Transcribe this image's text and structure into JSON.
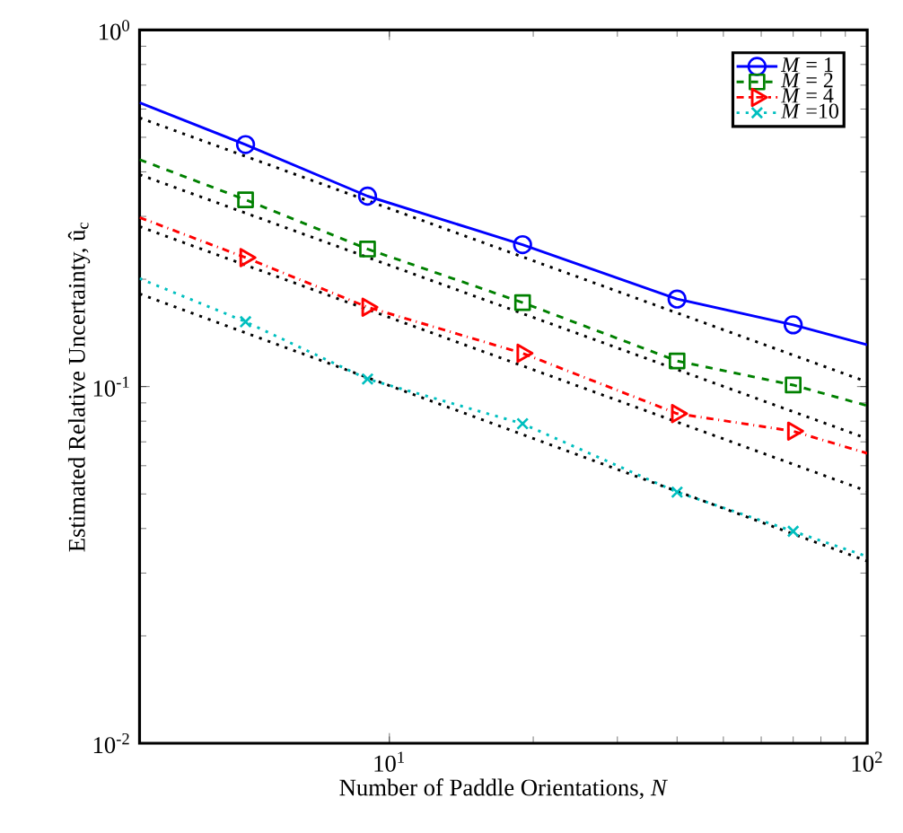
{
  "chart_data": {
    "type": "line",
    "xlabel": "Number of Paddle Orientations, *N*",
    "ylabel": "Estimated Relative Uncertainty, û$_{c}$",
    "log": "xy",
    "xlim": [
      3,
      100
    ],
    "ylim": [
      0.01,
      1
    ],
    "xticks": [
      {
        "value": 10,
        "label": "10$^{1}$"
      },
      {
        "value": 100,
        "label": "10$^{2}$"
      }
    ],
    "yticks": [
      {
        "value": 0.01,
        "label": "10$^{-2}$"
      },
      {
        "value": 0.1,
        "label": "10$^{-1}$"
      },
      {
        "value": 1,
        "label": "10$^{0}$"
      }
    ],
    "grid": false,
    "legend": "top right",
    "series": [
      {
        "name": "*M* = 1",
        "color": "#0000ff",
        "marker": "circle",
        "line_style": "solid",
        "x": [
          3,
          5,
          9,
          19,
          40,
          70,
          100
        ],
        "values": [
          0.625,
          0.477,
          0.342,
          0.25,
          0.176,
          0.149,
          0.131
        ]
      },
      {
        "name": "*M* = 2",
        "color": "#008000",
        "marker": "square",
        "line_style": "dashed",
        "x": [
          3,
          5,
          9,
          19,
          40,
          70,
          100
        ],
        "values": [
          0.433,
          0.334,
          0.243,
          0.172,
          0.118,
          0.101,
          0.0884
        ]
      },
      {
        "name": "*M* = 4",
        "color": "#ff0000",
        "marker": "triangle",
        "line_style": "dashdot",
        "x": [
          3,
          5,
          9,
          19,
          40,
          70,
          100
        ],
        "values": [
          0.298,
          0.23,
          0.167,
          0.124,
          0.084,
          0.075,
          0.065
        ]
      },
      {
        "name": "*M* =10",
        "color": "#00bfbf",
        "marker": "cross",
        "line_style": "dotted",
        "x": [
          3,
          5,
          9,
          19,
          40,
          70,
          100
        ],
        "values": [
          0.201,
          0.152,
          0.105,
          0.0787,
          0.0506,
          0.0393,
          0.0334
        ]
      },
      {
        "color": "#000000",
        "marker": "none",
        "line_style": "dotted",
        "x": [
          3,
          100
        ],
        "values": [
          0.567,
          0.103
        ]
      },
      {
        "color": "#000000",
        "marker": "none",
        "line_style": "dotted",
        "x": [
          3,
          100
        ],
        "values": [
          0.393,
          0.0715
        ]
      },
      {
        "color": "#000000",
        "marker": "none",
        "line_style": "dotted",
        "x": [
          3,
          100
        ],
        "values": [
          0.281,
          0.0509
        ]
      },
      {
        "color": "#000000",
        "marker": "none",
        "line_style": "dotted",
        "x": [
          3,
          100
        ],
        "values": [
          0.182,
          0.0324
        ]
      }
    ]
  }
}
